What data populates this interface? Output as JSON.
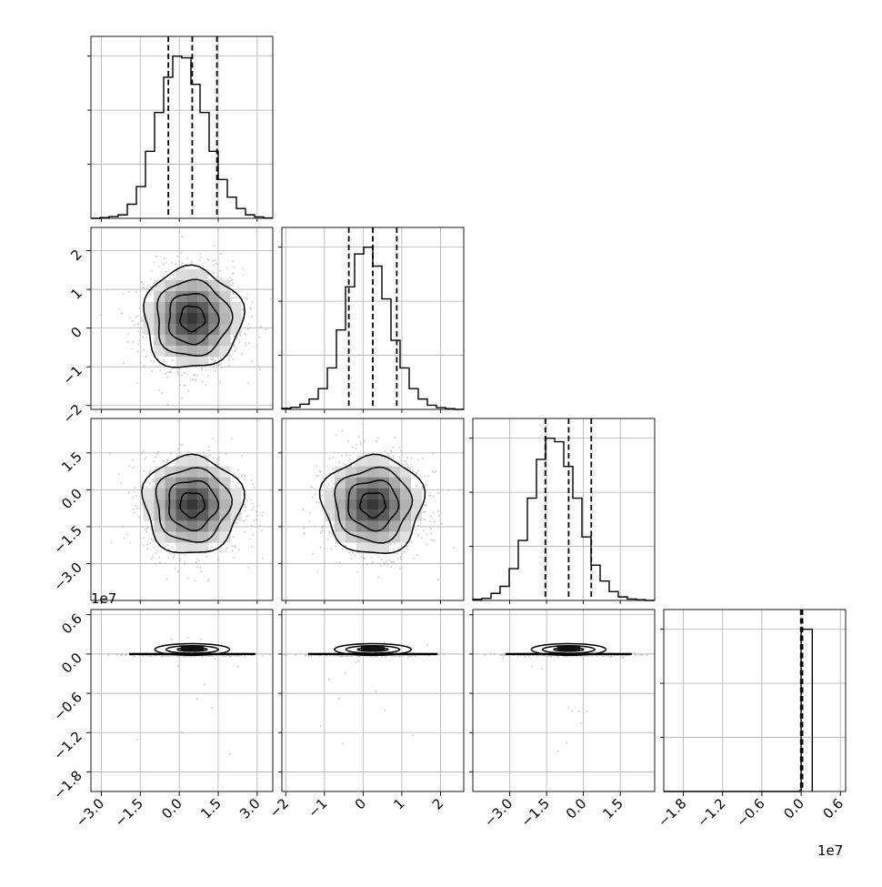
{
  "chart_data": {
    "type": "corner",
    "n_params": 4,
    "offset_label": "1e7",
    "variables": [
      {
        "range": [
          -3.4,
          3.6
        ],
        "ticks": [
          -3.0,
          -1.5,
          0.0,
          1.5,
          3.0
        ],
        "tick_labels": [
          "−3.0",
          "−1.5",
          "0.0",
          "1.5",
          "3.0"
        ],
        "median": 0.5,
        "q16": -0.42,
        "q84": 1.45,
        "sigma": 0.9
      },
      {
        "range": [
          -2.1,
          2.6
        ],
        "ticks": [
          -2,
          -1,
          0,
          1,
          2
        ],
        "tick_labels": [
          "−2",
          "−1",
          "0",
          "1",
          "2"
        ],
        "median": 0.25,
        "q16": -0.37,
        "q84": 0.87,
        "sigma": 0.62
      },
      {
        "range": [
          -4.5,
          2.9
        ],
        "ticks": [
          -3.0,
          -1.5,
          0.0,
          1.5
        ],
        "tick_labels": [
          "−3.0",
          "−1.5",
          "0.0",
          "1.5"
        ],
        "median": -0.6,
        "q16": -1.55,
        "q84": 0.32,
        "sigma": 0.95
      },
      {
        "range": [
          -2.1,
          0.68
        ],
        "ticks": [
          -1.8,
          -1.2,
          -0.6,
          0.0,
          0.6
        ],
        "tick_labels": [
          "−1.8",
          "−1.2",
          "−0.6",
          "0.0",
          "0.6"
        ],
        "median": 0.0,
        "q16": -0.005,
        "q84": 0.02,
        "sigma": 0.02,
        "offset": "1e7"
      }
    ],
    "histograms": [
      {
        "param": 1,
        "bin_width": 0.35,
        "bin_start": -3.4,
        "counts": [
          0,
          2,
          5,
          10,
          40,
          90,
          190,
          300,
          400,
          460,
          455,
          380,
          300,
          190,
          110,
          60,
          28,
          10,
          4,
          1
        ]
      },
      {
        "param": 2,
        "bin_width": 0.235,
        "bin_start": -2.1,
        "counts": [
          3,
          6,
          15,
          30,
          60,
          120,
          230,
          355,
          450,
          470,
          415,
          320,
          200,
          120,
          60,
          30,
          12,
          5,
          2,
          0
        ]
      },
      {
        "param": 3,
        "bin_width": 0.37,
        "bin_start": -4.5,
        "counts": [
          3,
          6,
          20,
          40,
          90,
          170,
          290,
          400,
          460,
          450,
          380,
          290,
          180,
          100,
          55,
          25,
          10,
          4,
          2,
          0
        ]
      },
      {
        "param": 4,
        "bins_x": [
          -2.1,
          -0.02,
          0.0,
          0.17
        ],
        "counts": [
          0,
          4,
          470,
          0
        ]
      }
    ],
    "pair_panels": [
      {
        "x_param": 1,
        "y_param": 2
      },
      {
        "x_param": 1,
        "y_param": 3
      },
      {
        "x_param": 2,
        "y_param": 3
      },
      {
        "x_param": 1,
        "y_param": 4
      },
      {
        "x_param": 2,
        "y_param": 4
      },
      {
        "x_param": 3,
        "y_param": 4
      }
    ]
  }
}
